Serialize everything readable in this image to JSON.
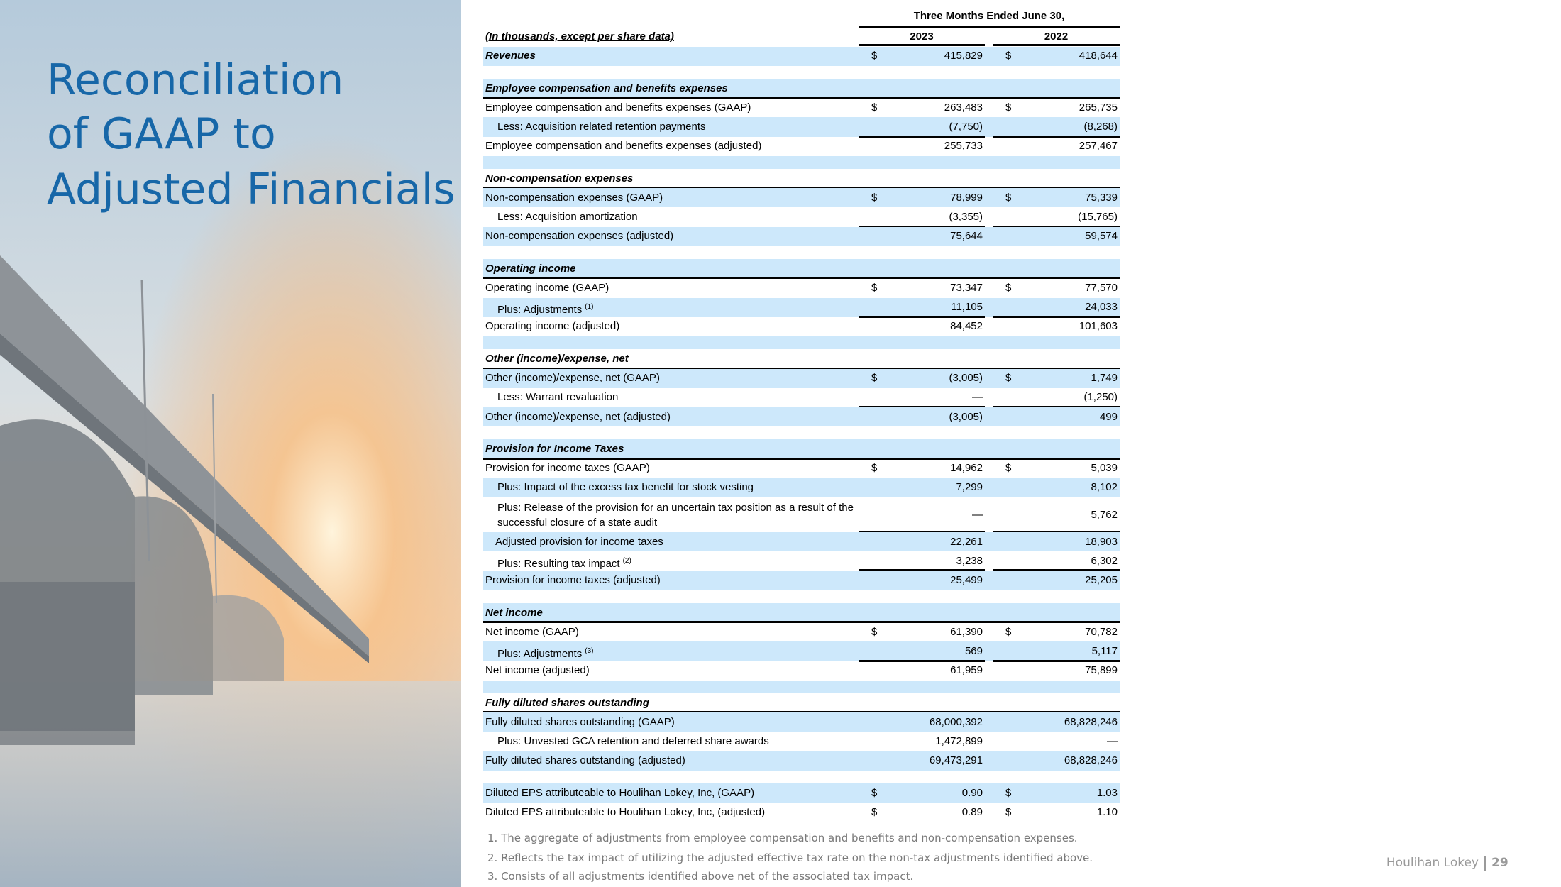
{
  "sidebar": {
    "title": [
      "Reconciliation",
      "of GAAP to",
      "Adjusted Financials"
    ]
  },
  "table": {
    "period": "Three Months Ended June 30,",
    "unit_note": "(In thousands, except per share data)",
    "years": [
      "2023",
      "2022"
    ],
    "revenues": {
      "label": "Revenues",
      "currency": [
        "$",
        "$"
      ],
      "values": [
        "415,829",
        "418,644"
      ]
    },
    "sections": [
      {
        "heading": "Employee compensation and benefits expenses",
        "rows": [
          {
            "label": "Employee compensation and benefits expenses (GAAP)",
            "currency": [
              "$",
              "$"
            ],
            "values": [
              "263,483",
              "265,735"
            ]
          },
          {
            "label": "Less: Acquisition related retention payments",
            "values": [
              "(7,750)",
              "(8,268)"
            ]
          },
          {
            "label": "Employee compensation and benefits expenses (adjusted)",
            "values": [
              "255,733",
              "257,467"
            ]
          }
        ]
      },
      {
        "heading": "Non-compensation expenses",
        "rows": [
          {
            "label": "Non-compensation expenses (GAAP)",
            "currency": [
              "$",
              "$"
            ],
            "values": [
              "78,999",
              "75,339"
            ]
          },
          {
            "label": "Less: Acquisition amortization",
            "values": [
              "(3,355)",
              "(15,765)"
            ]
          },
          {
            "label": "Non-compensation expenses (adjusted)",
            "values": [
              "75,644",
              "59,574"
            ]
          }
        ]
      },
      {
        "heading": "Operating income",
        "rows": [
          {
            "label": "Operating income (GAAP)",
            "currency": [
              "$",
              "$"
            ],
            "values": [
              "73,347",
              "77,570"
            ]
          },
          {
            "label": "Plus: Adjustments",
            "note": "(1)",
            "values": [
              "11,105",
              "24,033"
            ]
          },
          {
            "label": "Operating income (adjusted)",
            "values": [
              "84,452",
              "101,603"
            ]
          }
        ]
      },
      {
        "heading": "Other (income)/expense, net",
        "rows": [
          {
            "label": "Other (income)/expense, net (GAAP)",
            "currency": [
              "$",
              "$"
            ],
            "values": [
              "(3,005)",
              "1,749"
            ]
          },
          {
            "label": "Less: Warrant revaluation",
            "values": [
              "—",
              "(1,250)"
            ]
          },
          {
            "label": "Other (income)/expense, net (adjusted)",
            "values": [
              "(3,005)",
              "499"
            ]
          }
        ]
      },
      {
        "heading": "Provision for Income Taxes",
        "rows": [
          {
            "label": "Provision for income taxes (GAAP)",
            "currency": [
              "$",
              "$"
            ],
            "values": [
              "14,962",
              "5,039"
            ]
          },
          {
            "label": "Plus: Impact of the excess tax benefit for stock vesting",
            "values": [
              "7,299",
              "8,102"
            ]
          },
          {
            "label": "Plus: Release of the provision for an uncertain tax position as a result of the successful closure of a state audit",
            "values": [
              "—",
              "5,762"
            ]
          },
          {
            "label": "Adjusted provision for income taxes",
            "values": [
              "22,261",
              "18,903"
            ]
          },
          {
            "label": "Plus: Resulting tax impact",
            "note": "(2)",
            "values": [
              "3,238",
              "6,302"
            ]
          },
          {
            "label": "Provision for income taxes (adjusted)",
            "values": [
              "25,499",
              "25,205"
            ]
          }
        ]
      },
      {
        "heading": "Net income",
        "rows": [
          {
            "label": "Net income (GAAP)",
            "currency": [
              "$",
              "$"
            ],
            "values": [
              "61,390",
              "70,782"
            ]
          },
          {
            "label": "Plus: Adjustments",
            "note": "(3)",
            "values": [
              "569",
              "5,117"
            ]
          },
          {
            "label": "Net income (adjusted)",
            "values": [
              "61,959",
              "75,899"
            ]
          }
        ]
      },
      {
        "heading": "Fully diluted shares outstanding",
        "rows": [
          {
            "label": "Fully diluted shares outstanding (GAAP)",
            "values": [
              "68,000,392",
              "68,828,246"
            ]
          },
          {
            "label": "Plus: Unvested GCA retention and deferred share awards",
            "values": [
              "1,472,899",
              "—"
            ]
          },
          {
            "label": "Fully diluted shares outstanding (adjusted)",
            "values": [
              "69,473,291",
              "68,828,246"
            ]
          }
        ]
      }
    ],
    "eps": [
      {
        "label": "Diluted EPS attributeable to Houlihan Lokey, Inc, (GAAP)",
        "currency": [
          "$",
          "$"
        ],
        "values": [
          "0.90",
          "1.03"
        ]
      },
      {
        "label": "Diluted EPS attributeable to Houlihan Lokey, Inc, (adjusted)",
        "currency": [
          "$",
          "$"
        ],
        "values": [
          "0.89",
          "1.10"
        ]
      }
    ]
  },
  "footnotes": [
    "1. The aggregate of adjustments from employee compensation and benefits and non-compensation expenses.",
    "2. Reflects the tax impact of utilizing the adjusted effective tax rate on the non-tax adjustments identified above.",
    "3. Consists of all adjustments identified above net of the associated tax impact."
  ],
  "footer": {
    "brand": "Houlihan Lokey",
    "page": "29"
  }
}
